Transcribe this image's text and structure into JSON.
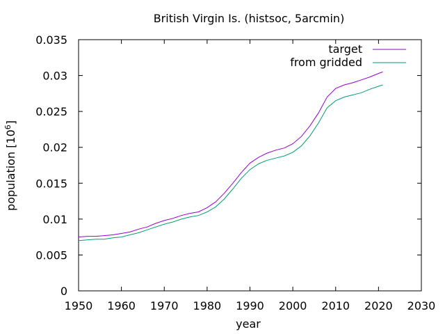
{
  "chart_data": {
    "type": "line",
    "title": "British Virgin Is. (histsoc, 5arcmin)",
    "xlabel": "year",
    "ylabel_base": "population [10",
    "ylabel_exp": "6",
    "ylabel_close": "]",
    "xlim": [
      1950,
      2030
    ],
    "ylim": [
      0,
      0.035
    ],
    "xticks": [
      1950,
      1960,
      1970,
      1980,
      1990,
      2000,
      2010,
      2020,
      2030
    ],
    "yticks": [
      0,
      0.005,
      0.01,
      0.015,
      0.02,
      0.025,
      0.03,
      0.035
    ],
    "ytick_labels": [
      "0",
      "0.005",
      "0.01",
      "0.015",
      "0.02",
      "0.025",
      "0.03",
      "0.035"
    ],
    "grid": false,
    "legend_position": "top-right",
    "series": [
      {
        "name": "target",
        "color": "#9400d3",
        "x": [
          1950,
          1952,
          1954,
          1956,
          1958,
          1960,
          1962,
          1964,
          1966,
          1968,
          1970,
          1972,
          1974,
          1976,
          1978,
          1980,
          1982,
          1984,
          1986,
          1988,
          1990,
          1992,
          1994,
          1996,
          1998,
          2000,
          2002,
          2004,
          2006,
          2008,
          2010,
          2012,
          2014,
          2016,
          2018,
          2020,
          2021
        ],
        "values": [
          0.0075,
          0.0076,
          0.0076,
          0.0077,
          0.0078,
          0.008,
          0.0082,
          0.0086,
          0.0089,
          0.0094,
          0.0098,
          0.0101,
          0.0105,
          0.0108,
          0.011,
          0.0116,
          0.0124,
          0.0136,
          0.015,
          0.0165,
          0.0178,
          0.0186,
          0.0192,
          0.0196,
          0.0199,
          0.0205,
          0.0215,
          0.023,
          0.0248,
          0.027,
          0.0282,
          0.0287,
          0.029,
          0.0294,
          0.0298,
          0.0303,
          0.0305
        ]
      },
      {
        "name": "from gridded",
        "color": "#009e73",
        "x": [
          1950,
          1952,
          1954,
          1956,
          1958,
          1960,
          1962,
          1964,
          1966,
          1968,
          1970,
          1972,
          1974,
          1976,
          1978,
          1980,
          1982,
          1984,
          1986,
          1988,
          1990,
          1992,
          1994,
          1996,
          1998,
          2000,
          2002,
          2004,
          2006,
          2008,
          2010,
          2012,
          2014,
          2016,
          2018,
          2020,
          2021
        ],
        "values": [
          0.007,
          0.0071,
          0.0072,
          0.0072,
          0.0074,
          0.0075,
          0.0078,
          0.0081,
          0.0085,
          0.0089,
          0.0093,
          0.0096,
          0.01,
          0.0103,
          0.0105,
          0.011,
          0.0117,
          0.0128,
          0.0142,
          0.0157,
          0.0169,
          0.0177,
          0.0182,
          0.0185,
          0.0188,
          0.0193,
          0.0202,
          0.0216,
          0.0234,
          0.0255,
          0.0265,
          0.027,
          0.0273,
          0.0276,
          0.0281,
          0.0285,
          0.0287
        ]
      }
    ]
  }
}
